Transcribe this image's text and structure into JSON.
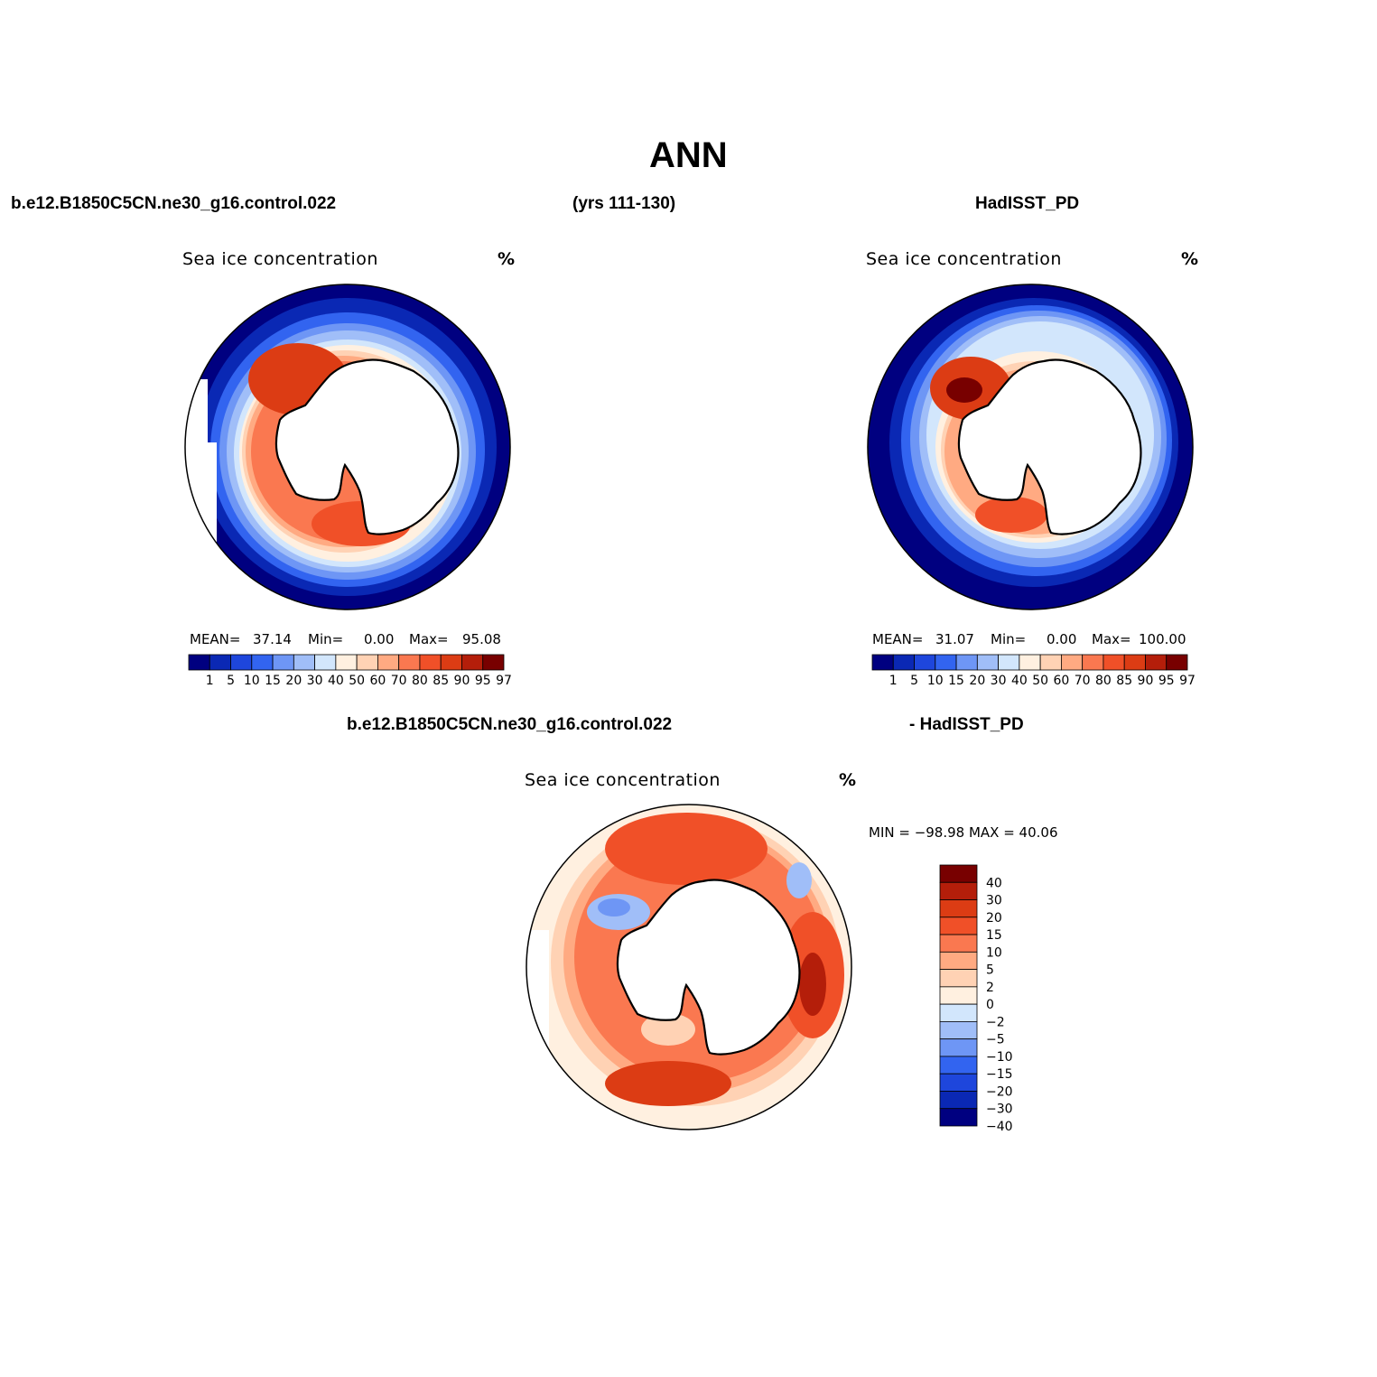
{
  "header": {
    "title": "ANN",
    "case_name": "b.e12.B1850C5CN.ne30_g16.control.022",
    "years": "(yrs 111-130)",
    "obs_name": "HadISST_PD",
    "diff_case": "b.e12.B1850C5CN.ne30_g16.control.022",
    "diff_obs": "- HadISST_PD"
  },
  "panels": [
    {
      "id": "model",
      "title": "Sea ice concentration",
      "units": "%",
      "mean_label": "MEAN=",
      "mean": "37.14",
      "min_label": "Min=",
      "min": "0.00",
      "max_label": "Max=",
      "max": "95.08"
    },
    {
      "id": "obs",
      "title": "Sea ice concentration",
      "units": "%",
      "mean_label": "MEAN=",
      "mean": "31.07",
      "min_label": "Min=",
      "min": "0.00",
      "max_label": "Max=",
      "max": "100.00"
    },
    {
      "id": "diff",
      "title": "Sea ice concentration",
      "units": "%",
      "minmax": "MIN = −98.98 MAX =   40.06"
    }
  ],
  "colorbar_abs": {
    "labels": [
      "1",
      "5",
      "10",
      "15",
      "20",
      "30",
      "40",
      "50",
      "60",
      "70",
      "80",
      "85",
      "90",
      "95",
      "97"
    ],
    "colors": [
      "#000080",
      "#0a28b4",
      "#1e46dc",
      "#3264f0",
      "#6e96f5",
      "#a0bef8",
      "#d2e6fc",
      "#fff0e0",
      "#ffd2b4",
      "#ffaa82",
      "#fa7850",
      "#f05028",
      "#dc3c14",
      "#b41e0a",
      "#780000"
    ]
  },
  "colorbar_diff": {
    "labels": [
      "40",
      "30",
      "20",
      "15",
      "10",
      "5",
      "2",
      "0",
      "−2",
      "−5",
      "−10",
      "−15",
      "−20",
      "−30",
      "−40"
    ],
    "colors": [
      "#780000",
      "#b41e0a",
      "#dc3c14",
      "#f05028",
      "#fa7850",
      "#ffaa82",
      "#ffd2b4",
      "#fff0e0",
      "#d2e6fc",
      "#a0bef8",
      "#6e96f5",
      "#3264f0",
      "#1e46dc",
      "#0a28b4",
      "#000080"
    ]
  }
}
